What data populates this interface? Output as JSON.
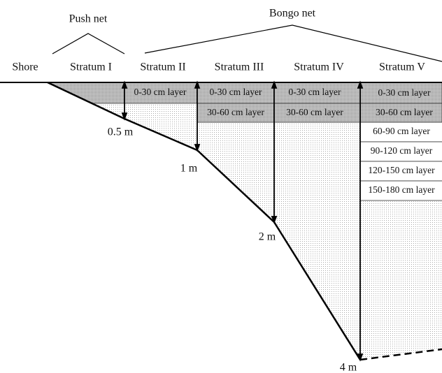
{
  "header": {
    "push_net": "Push net",
    "bongo_net": "Bongo net",
    "shore": "Shore"
  },
  "strata": [
    "Stratum I",
    "Stratum II",
    "Stratum III",
    "Stratum IV",
    "Stratum V"
  ],
  "layers": {
    "stratum_II": [
      "0-30 cm layer"
    ],
    "stratum_III": [
      "0-30 cm layer",
      "30-60 cm layer"
    ],
    "stratum_IV": [
      "0-30 cm layer",
      "30-60 cm layer"
    ],
    "stratum_V": [
      "0-30 cm layer",
      "30-60 cm layer",
      "60-90 cm layer",
      "90-120 cm layer",
      "120-150 cm layer",
      "150-180 cm layer"
    ]
  },
  "depths": [
    "0.5 m",
    "1 m",
    "2 m",
    "4 m"
  ]
}
